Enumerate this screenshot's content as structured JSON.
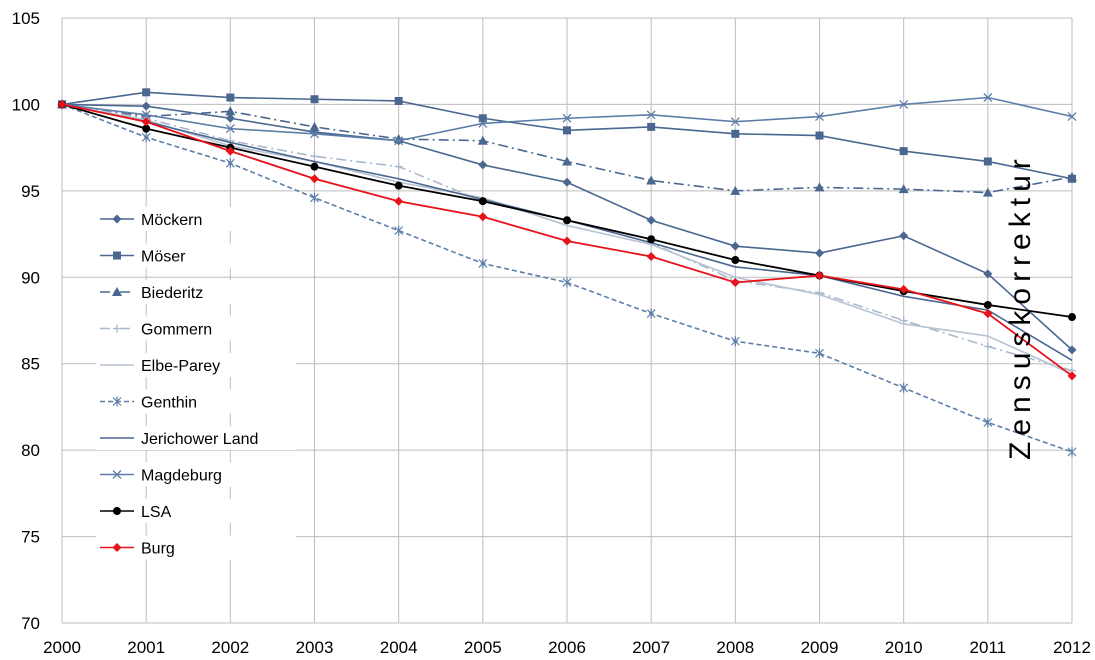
{
  "chart_data": {
    "type": "line",
    "title": "",
    "xlabel": "",
    "ylabel": "",
    "x": [
      "2000",
      "2001",
      "2002",
      "2003",
      "2004",
      "2005",
      "2006",
      "2007",
      "2008",
      "2009",
      "2010",
      "2011",
      "2012"
    ],
    "xlim": [
      2000,
      2012
    ],
    "ylim": [
      70,
      105
    ],
    "yticks": [
      70,
      75,
      80,
      85,
      90,
      95,
      100,
      105
    ],
    "grid": true,
    "legend_position": "left",
    "annotation": "Zensuskorrektur",
    "series": [
      {
        "name": "Möckern",
        "color": "#4a6790",
        "dash": "solid",
        "marker": "diamond",
        "values": [
          100,
          99.9,
          99.2,
          98.4,
          97.9,
          96.5,
          95.5,
          93.3,
          91.8,
          91.4,
          92.4,
          90.2,
          85.8
        ]
      },
      {
        "name": "Möser",
        "color": "#4a6790",
        "dash": "solid",
        "marker": "square",
        "values": [
          100,
          100.7,
          100.4,
          100.3,
          100.2,
          99.2,
          98.5,
          98.7,
          98.3,
          98.2,
          97.3,
          96.7,
          95.7
        ]
      },
      {
        "name": "Biederitz",
        "color": "#4a6790",
        "dash": "dashdot",
        "marker": "triangle",
        "values": [
          100,
          99.3,
          99.6,
          98.7,
          98.0,
          97.9,
          96.7,
          95.6,
          95.0,
          95.2,
          95.1,
          94.9,
          95.8
        ]
      },
      {
        "name": "Gommern",
        "color": "#a8b8cc",
        "dash": "dashdot",
        "marker": "plus",
        "values": [
          100,
          99.2,
          97.9,
          97.0,
          96.4,
          94.4,
          93.3,
          92.0,
          89.8,
          89.1,
          87.5,
          86.0,
          84.6
        ]
      },
      {
        "name": "Elbe-Parey",
        "color": "#b7c3d3",
        "dash": "solid",
        "marker": "none",
        "values": [
          100,
          99.1,
          97.6,
          96.7,
          95.5,
          94.6,
          93.0,
          91.9,
          90.0,
          89.0,
          87.3,
          86.6,
          84.4
        ]
      },
      {
        "name": "Genthin",
        "color": "#5d7ea8",
        "dash": "dash",
        "marker": "star",
        "values": [
          100,
          98.1,
          96.6,
          94.6,
          92.7,
          90.8,
          89.7,
          87.9,
          86.3,
          85.6,
          83.6,
          81.6,
          79.9
        ]
      },
      {
        "name": "Jerichower Land",
        "color": "#4a6790",
        "dash": "solid",
        "marker": "none",
        "values": [
          100,
          99.0,
          97.8,
          96.7,
          95.7,
          94.5,
          93.3,
          92.0,
          90.6,
          90.1,
          88.9,
          88.1,
          85.2
        ]
      },
      {
        "name": "Magdeburg",
        "color": "#5d7ea8",
        "dash": "solid",
        "marker": "x",
        "values": [
          100,
          99.4,
          98.6,
          98.3,
          97.9,
          98.9,
          99.2,
          99.4,
          99.0,
          99.3,
          100.0,
          100.4,
          99.3
        ]
      },
      {
        "name": "LSA",
        "color": "#000000",
        "dash": "solid",
        "marker": "circle",
        "values": [
          100,
          98.6,
          97.5,
          96.4,
          95.3,
          94.4,
          93.3,
          92.2,
          91.0,
          90.1,
          89.2,
          88.4,
          87.7
        ]
      },
      {
        "name": "Burg",
        "color": "#e8121a",
        "dash": "solid",
        "marker": "diamond",
        "values": [
          100,
          99.0,
          97.3,
          95.7,
          94.4,
          93.5,
          92.1,
          91.2,
          89.7,
          90.1,
          89.3,
          87.9,
          84.3
        ]
      }
    ]
  }
}
